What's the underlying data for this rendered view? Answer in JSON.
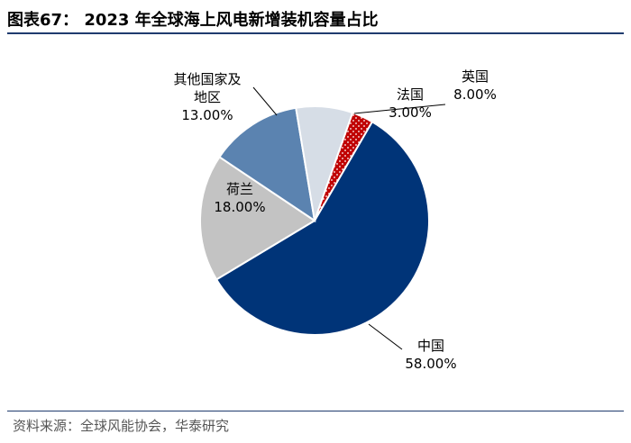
{
  "header": {
    "title": "图表67：  2023 年全球海上风电新增装机容量占比"
  },
  "footer": {
    "source": "资料来源：全球风能协会，华泰研究"
  },
  "chart_data": {
    "type": "pie",
    "title": "",
    "slices": [
      {
        "label": "中国",
        "value": 58.0,
        "display": "58.00%",
        "color": "#003478"
      },
      {
        "label": "荷兰",
        "value": 18.0,
        "display": "18.00%",
        "color": "#c3c3c3"
      },
      {
        "label": "其他国家及\n地区",
        "value": 13.0,
        "display": "13.00%",
        "color": "#5b83b0"
      },
      {
        "label": "英国",
        "value": 8.0,
        "display": "8.00%",
        "color": "#d6dde6"
      },
      {
        "label": "法国",
        "value": 3.0,
        "display": "3.00%",
        "color": "#c00000",
        "pattern": "dots"
      }
    ]
  }
}
